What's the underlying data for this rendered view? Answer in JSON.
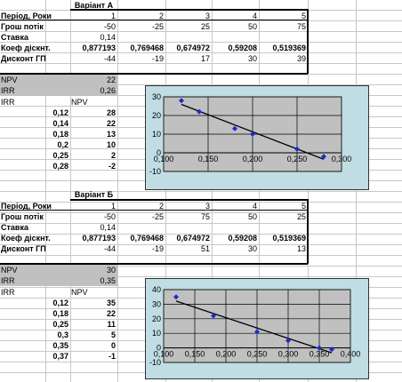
{
  "sectionA": {
    "title": "Варіант А",
    "rows": [
      {
        "label": "Період, Роки",
        "values": [
          "1",
          "2",
          "3",
          "4",
          "5"
        ]
      },
      {
        "label": "Грош потік",
        "values": [
          "-50",
          "-25",
          "25",
          "50",
          "75"
        ]
      },
      {
        "label": "Ставка",
        "values": [
          "0,14",
          "",
          "",
          "",
          ""
        ]
      },
      {
        "label": "Коеф дiскнт.",
        "values": [
          "0,877193",
          "0,769468",
          "0,674972",
          "0,59208",
          "0,519369"
        ]
      },
      {
        "label": "Дисконт ГП",
        "values": [
          "-44",
          "-19",
          "17",
          "30",
          "39"
        ]
      }
    ],
    "npv_label": "NPV",
    "npv_value": "22",
    "irr_label": "IRR",
    "irr_value": "0,26",
    "table_head": [
      "IRR",
      "NPV"
    ],
    "table": [
      [
        "0,12",
        "28"
      ],
      [
        "0,14",
        "22"
      ],
      [
        "0,18",
        "13"
      ],
      [
        "0,2",
        "10"
      ],
      [
        "0,25",
        "2"
      ],
      [
        "0,28",
        "-2"
      ]
    ]
  },
  "sectionB": {
    "title": "Варіант Б",
    "rows": [
      {
        "label": "Період, Роки",
        "values": [
          "1",
          "2",
          "3",
          "4",
          "5"
        ]
      },
      {
        "label": "Грош потік",
        "values": [
          "-50",
          "-25",
          "75",
          "50",
          "25"
        ]
      },
      {
        "label": "Ставка",
        "values": [
          "0,14",
          "",
          "",
          "",
          ""
        ]
      },
      {
        "label": "Коеф дiскнт.",
        "values": [
          "0,877193",
          "0,769468",
          "0,674972",
          "0,59208",
          "0,519369"
        ]
      },
      {
        "label": "Дисконт ГП",
        "values": [
          "-44",
          "-19",
          "51",
          "30",
          "13"
        ]
      }
    ],
    "npv_label": "NPV",
    "npv_value": "30",
    "irr_label": "IRR",
    "irr_value": "0,35",
    "table_head": [
      "IRR",
      "NPV"
    ],
    "table": [
      [
        "0,12",
        "35"
      ],
      [
        "0,18",
        "22"
      ],
      [
        "0,25",
        "11"
      ],
      [
        "0,3",
        "5"
      ],
      [
        "0,35",
        "0"
      ],
      [
        "0,37",
        "-1"
      ]
    ]
  },
  "chart_data": [
    {
      "type": "scatter",
      "x": [
        0.12,
        0.14,
        0.18,
        0.2,
        0.25,
        0.28
      ],
      "y": [
        28,
        22,
        13,
        10,
        2,
        -2
      ],
      "xlim": [
        0.1,
        0.3
      ],
      "ylim": [
        -10,
        30
      ],
      "x_ticks": [
        "0,100",
        "0,150",
        "0,200",
        "0,250",
        "0,300"
      ],
      "y_ticks": [
        "30",
        "20",
        "10",
        "0",
        "-10"
      ],
      "trendline": true,
      "point_color": "#1a2bd0"
    },
    {
      "type": "scatter",
      "x": [
        0.12,
        0.18,
        0.25,
        0.3,
        0.35,
        0.37
      ],
      "y": [
        35,
        22,
        11,
        5,
        0,
        -1
      ],
      "xlim": [
        0.1,
        0.4
      ],
      "ylim": [
        -10,
        40
      ],
      "x_ticks": [
        "0,100",
        "0,150",
        "0,200",
        "0,250",
        "0,300",
        "0,350",
        "0,400"
      ],
      "y_ticks": [
        "40",
        "30",
        "20",
        "10",
        "0",
        "-10"
      ],
      "trendline": true,
      "point_color": "#1a2bd0"
    }
  ]
}
